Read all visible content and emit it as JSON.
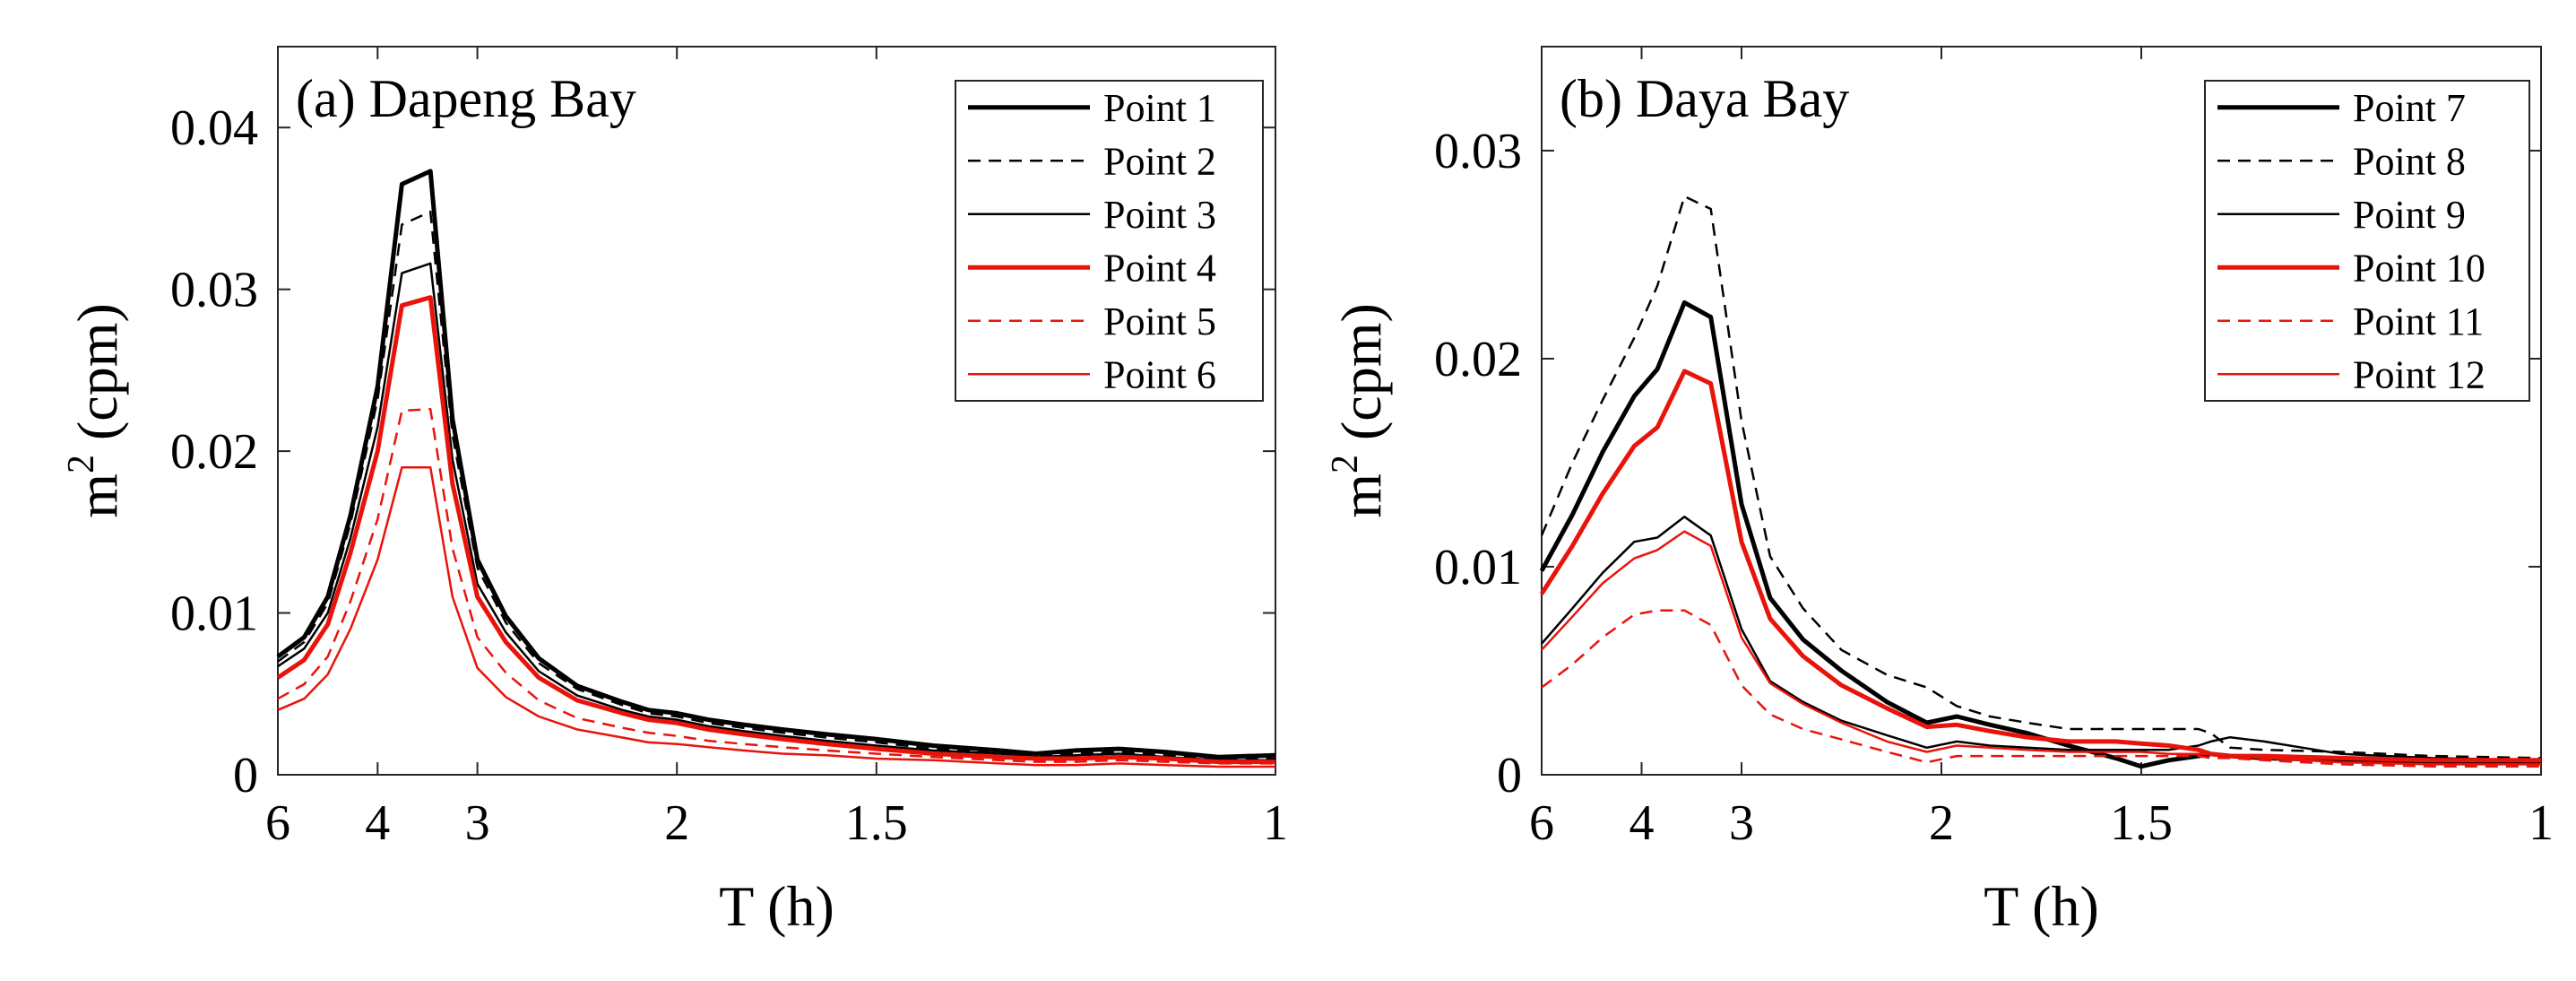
{
  "figure_title": "",
  "chart_data": [
    {
      "type": "line",
      "title": "(a) Dapeng Bay",
      "xlabel": "T (h)",
      "ylabel_base": "m",
      "ylabel_sup": "2",
      "ylabel_rest": " (cpm)",
      "x_scale": "frequency (1/T)",
      "xlim": [
        6,
        1
      ],
      "ylim": [
        0,
        0.045
      ],
      "x_ticks": [
        6,
        4,
        3,
        2,
        1.5,
        1
      ],
      "x_tick_labels": [
        "6",
        "4",
        "3",
        "2",
        "1.5",
        "1"
      ],
      "y_ticks": [
        0,
        0.01,
        0.02,
        0.03,
        0.04
      ],
      "y_tick_labels": [
        "0",
        "0.01",
        "0.02",
        "0.03",
        "0.04"
      ],
      "legend_position": "top-right",
      "x": [
        6,
        5.3,
        4.8,
        4.4,
        4.0,
        3.7,
        3.4,
        3.2,
        3.0,
        2.8,
        2.6,
        2.4,
        2.2,
        2.1,
        2.0,
        1.9,
        1.8,
        1.7,
        1.6,
        1.5,
        1.4,
        1.3,
        1.25,
        1.2,
        1.15,
        1.1,
        1.05,
        1.0
      ],
      "series": [
        {
          "name": "Point 1",
          "color": "#000000",
          "dash": "solid",
          "width": "thick",
          "values": [
            0.0073,
            0.0085,
            0.011,
            0.016,
            0.024,
            0.0365,
            0.0373,
            0.022,
            0.0133,
            0.0098,
            0.0072,
            0.0055,
            0.0045,
            0.004,
            0.0038,
            0.0034,
            0.0031,
            0.0028,
            0.0025,
            0.0022,
            0.0018,
            0.0015,
            0.0013,
            0.0015,
            0.0016,
            0.0014,
            0.0011,
            0.0012
          ]
        },
        {
          "name": "Point 2",
          "color": "#000000",
          "dash": "dashed",
          "width": "thin",
          "values": [
            0.007,
            0.0082,
            0.0106,
            0.0155,
            0.0232,
            0.034,
            0.0348,
            0.021,
            0.0128,
            0.0094,
            0.0069,
            0.0053,
            0.0043,
            0.0038,
            0.0036,
            0.0032,
            0.0029,
            0.0026,
            0.0023,
            0.002,
            0.0016,
            0.0014,
            0.0012,
            0.0013,
            0.0014,
            0.0012,
            0.001,
            0.001
          ]
        },
        {
          "name": "Point 3",
          "color": "#000000",
          "dash": "solid",
          "width": "thin",
          "values": [
            0.0067,
            0.0078,
            0.01,
            0.0146,
            0.0215,
            0.031,
            0.0316,
            0.0195,
            0.0118,
            0.0088,
            0.0064,
            0.0049,
            0.004,
            0.0036,
            0.0034,
            0.003,
            0.0027,
            0.0024,
            0.0021,
            0.0018,
            0.0015,
            0.0013,
            0.0011,
            0.0012,
            0.0013,
            0.0011,
            0.0009,
            0.0009
          ]
        },
        {
          "name": "Point 4",
          "color": "#e8140c",
          "dash": "solid",
          "width": "thick",
          "values": [
            0.006,
            0.0071,
            0.0093,
            0.0137,
            0.02,
            0.029,
            0.0295,
            0.018,
            0.011,
            0.0082,
            0.006,
            0.0046,
            0.0038,
            0.0034,
            0.0032,
            0.0028,
            0.0025,
            0.0022,
            0.0019,
            0.0016,
            0.0013,
            0.0011,
            0.001,
            0.001,
            0.0011,
            0.001,
            0.0008,
            0.0008
          ]
        },
        {
          "name": "Point 5",
          "color": "#e8140c",
          "dash": "dashed",
          "width": "thin",
          "values": [
            0.0047,
            0.0056,
            0.0073,
            0.0107,
            0.0158,
            0.0225,
            0.0226,
            0.014,
            0.0085,
            0.0063,
            0.0046,
            0.0035,
            0.0029,
            0.0026,
            0.0024,
            0.0021,
            0.0019,
            0.0017,
            0.0015,
            0.0013,
            0.0011,
            0.0009,
            0.0008,
            0.0008,
            0.0009,
            0.0008,
            0.0007,
            0.0007
          ]
        },
        {
          "name": "Point 6",
          "color": "#e8140c",
          "dash": "solid",
          "width": "thin",
          "values": [
            0.004,
            0.0047,
            0.0062,
            0.009,
            0.0133,
            0.019,
            0.019,
            0.011,
            0.0066,
            0.0048,
            0.0036,
            0.0028,
            0.0023,
            0.002,
            0.0019,
            0.0017,
            0.0015,
            0.0013,
            0.0012,
            0.001,
            0.0009,
            0.0007,
            0.0006,
            0.0006,
            0.0007,
            0.0006,
            0.0005,
            0.0005
          ]
        }
      ]
    },
    {
      "type": "line",
      "title": "(b) Daya Bay",
      "xlabel": "T (h)",
      "ylabel_base": "m",
      "ylabel_sup": "2",
      "ylabel_rest": " (cpm)",
      "x_scale": "frequency (1/T)",
      "xlim": [
        6,
        1
      ],
      "ylim": [
        0,
        0.035
      ],
      "x_ticks": [
        6,
        4,
        3,
        2,
        1.5,
        1
      ],
      "x_tick_labels": [
        "6",
        "4",
        "3",
        "2",
        "1.5",
        "1"
      ],
      "y_ticks": [
        0,
        0.01,
        0.02,
        0.03
      ],
      "y_tick_labels": [
        "0",
        "0.01",
        "0.02",
        "0.03"
      ],
      "legend_position": "top-right",
      "x": [
        6,
        5.2,
        4.6,
        4.1,
        3.8,
        3.5,
        3.25,
        3.0,
        2.8,
        2.6,
        2.4,
        2.2,
        2.05,
        1.95,
        1.85,
        1.75,
        1.65,
        1.55,
        1.5,
        1.45,
        1.4,
        1.38,
        1.35,
        1.3,
        1.2,
        1.1,
        1.0
      ],
      "series": [
        {
          "name": "Point 7",
          "color": "#000000",
          "dash": "solid",
          "width": "thick",
          "values": [
            0.0098,
            0.0125,
            0.0155,
            0.0182,
            0.0195,
            0.0227,
            0.022,
            0.013,
            0.0085,
            0.0065,
            0.005,
            0.0035,
            0.0025,
            0.0028,
            0.0024,
            0.002,
            0.0014,
            0.0008,
            0.0004,
            0.0007,
            0.0009,
            0.001,
            0.0009,
            0.0008,
            0.0007,
            0.0006,
            0.0006
          ]
        },
        {
          "name": "Point 8",
          "color": "#000000",
          "dash": "dashed",
          "width": "thin",
          "values": [
            0.0115,
            0.015,
            0.018,
            0.021,
            0.0235,
            0.0278,
            0.0272,
            0.017,
            0.0105,
            0.008,
            0.006,
            0.0048,
            0.0042,
            0.0033,
            0.0028,
            0.0025,
            0.0022,
            0.0022,
            0.0022,
            0.0022,
            0.0022,
            0.002,
            0.0013,
            0.0012,
            0.0011,
            0.0009,
            0.0008
          ]
        },
        {
          "name": "Point 9",
          "color": "#000000",
          "dash": "solid",
          "width": "thin",
          "values": [
            0.0063,
            0.008,
            0.0097,
            0.0112,
            0.0114,
            0.0124,
            0.0115,
            0.007,
            0.0045,
            0.0035,
            0.0026,
            0.0019,
            0.0013,
            0.0016,
            0.0014,
            0.0013,
            0.0012,
            0.0012,
            0.0012,
            0.0012,
            0.0014,
            0.0016,
            0.0018,
            0.0016,
            0.001,
            0.0008,
            0.0007
          ]
        },
        {
          "name": "Point 10",
          "color": "#e8140c",
          "dash": "solid",
          "width": "thick",
          "values": [
            0.0087,
            0.011,
            0.0135,
            0.0158,
            0.0167,
            0.0194,
            0.0188,
            0.0112,
            0.0075,
            0.0057,
            0.0043,
            0.0032,
            0.0023,
            0.0024,
            0.0021,
            0.0018,
            0.0016,
            0.0016,
            0.0015,
            0.0014,
            0.0012,
            0.001,
            0.0009,
            0.0009,
            0.0008,
            0.0007,
            0.0007
          ]
        },
        {
          "name": "Point 11",
          "color": "#e8140c",
          "dash": "dashed",
          "width": "thin",
          "values": [
            0.0042,
            0.0053,
            0.0066,
            0.0077,
            0.0079,
            0.0079,
            0.0072,
            0.0043,
            0.0029,
            0.0022,
            0.0017,
            0.0011,
            0.0006,
            0.0009,
            0.0009,
            0.0009,
            0.0009,
            0.0009,
            0.0009,
            0.0009,
            0.0009,
            0.0008,
            0.0008,
            0.0007,
            0.0005,
            0.0004,
            0.0004
          ]
        },
        {
          "name": "Point 12",
          "color": "#e8140c",
          "dash": "solid",
          "width": "thin",
          "values": [
            0.006,
            0.0076,
            0.0092,
            0.0104,
            0.0108,
            0.0117,
            0.011,
            0.0066,
            0.0044,
            0.0034,
            0.0025,
            0.0016,
            0.0011,
            0.0014,
            0.0013,
            0.0012,
            0.0011,
            0.0011,
            0.0011,
            0.001,
            0.001,
            0.001,
            0.0009,
            0.0008,
            0.0006,
            0.0005,
            0.0005
          ]
        }
      ]
    }
  ]
}
